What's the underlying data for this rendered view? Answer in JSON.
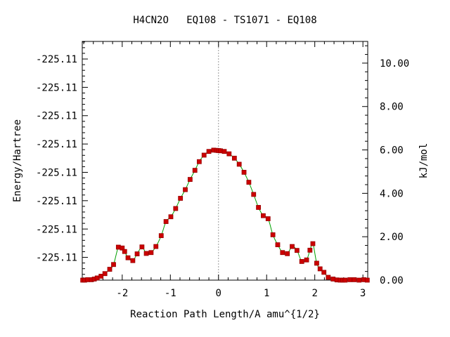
{
  "chart_data": {
    "type": "line",
    "title": "H4CN2O   EQ108 - TS1071 - EQ108",
    "xlabel": "Reaction Path Length/A amu^{1/2}",
    "ylabel_left": "Energy/Hartree",
    "ylabel_right": "kJ/mol",
    "xlim": [
      -2.83,
      3.1
    ],
    "ylim_right": [
      0,
      11
    ],
    "x_ticks": [
      -2,
      -1,
      0,
      1,
      2,
      3
    ],
    "x_tick_labels": [
      "-2",
      "-1",
      "0",
      "1",
      "2",
      "3"
    ],
    "y_right_ticks": [
      0,
      2,
      4,
      6,
      8,
      10
    ],
    "y_right_tick_labels": [
      "0.00",
      "2.00",
      "4.00",
      "6.00",
      "8.00",
      "10.00"
    ],
    "y_left_tick_values_kjmol": [
      1.05,
      2.35,
      3.66,
      4.96,
      6.27,
      7.58,
      8.88,
      10.19
    ],
    "y_left_tick_labels": [
      "-225.11",
      "-225.11",
      "-225.11",
      "-225.11",
      "-225.11",
      "-225.11",
      "-225.11",
      "-225.11"
    ],
    "reference_line_x": 0,
    "grid": false,
    "legend": "none",
    "colors": {
      "line": "#00a000",
      "marker": "#cc0000",
      "marker_edge": "#990000",
      "reference_line": "#9a9a9a"
    },
    "series": [
      {
        "x": [
          -2.82,
          -2.78,
          -2.72,
          -2.64,
          -2.58,
          -2.52,
          -2.44,
          -2.36,
          -2.26,
          -2.18,
          -2.08,
          -2.0,
          -1.95,
          -1.88,
          -1.78,
          -1.69,
          -1.59,
          -1.5,
          -1.4,
          -1.3,
          -1.19,
          -1.09,
          -0.99,
          -0.89,
          -0.79,
          -0.69,
          -0.59,
          -0.49,
          -0.4,
          -0.3,
          -0.2,
          -0.1,
          -0.04,
          0.0,
          0.04,
          0.12,
          0.22,
          0.33,
          0.43,
          0.53,
          0.63,
          0.73,
          0.83,
          0.93,
          1.03,
          1.13,
          1.23,
          1.33,
          1.43,
          1.53,
          1.63,
          1.73,
          1.83,
          1.9,
          1.96,
          2.04,
          2.11,
          2.19,
          2.28,
          2.38,
          2.46,
          2.53,
          2.58,
          2.63,
          2.73,
          2.82,
          2.92,
          3.02,
          3.09
        ],
        "y": [
          0.0,
          0.0,
          0.02,
          0.02,
          0.05,
          0.1,
          0.18,
          0.3,
          0.5,
          0.72,
          1.52,
          1.48,
          1.32,
          1.03,
          0.9,
          1.21,
          1.53,
          1.23,
          1.27,
          1.55,
          2.05,
          2.7,
          2.92,
          3.3,
          3.77,
          4.17,
          4.64,
          5.06,
          5.46,
          5.76,
          5.93,
          5.99,
          5.98,
          5.97,
          5.96,
          5.93,
          5.82,
          5.62,
          5.34,
          4.97,
          4.51,
          3.95,
          3.35,
          2.97,
          2.83,
          2.09,
          1.63,
          1.27,
          1.22,
          1.55,
          1.37,
          0.86,
          0.93,
          1.38,
          1.68,
          0.78,
          0.52,
          0.36,
          0.13,
          0.05,
          0.01,
          0.0,
          0.0,
          0.0,
          0.02,
          0.02,
          0.0,
          0.02,
          0.0
        ]
      }
    ]
  }
}
